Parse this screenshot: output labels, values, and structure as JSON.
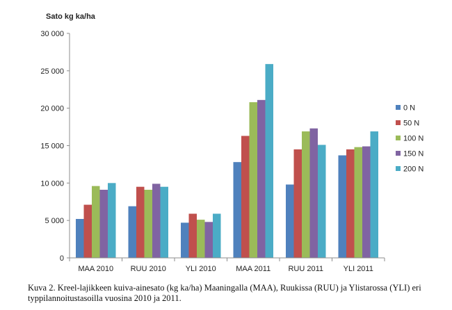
{
  "chart_data": {
    "type": "bar",
    "ylabel": "Sato kg ka/ha",
    "xlabel": "",
    "ylim": [
      0,
      30000
    ],
    "yticks": [
      0,
      5000,
      10000,
      15000,
      20000,
      25000,
      30000
    ],
    "ytick_labels": [
      "0",
      "5 000",
      "10 000",
      "15 000",
      "20 000",
      "25 000",
      "30 000"
    ],
    "grid": false,
    "legend_position": "right",
    "categories": [
      "MAA 2010",
      "RUU 2010",
      "YLI 2010",
      "MAA 2011",
      "RUU 2011",
      "YLI 2011"
    ],
    "series": [
      {
        "name": "0 N",
        "color": "#4f81bd",
        "values": [
          5200,
          6900,
          4700,
          12800,
          9800,
          13700
        ]
      },
      {
        "name": "50 N",
        "color": "#c0504d",
        "values": [
          7100,
          9500,
          5900,
          16300,
          14500,
          14500
        ]
      },
      {
        "name": "100 N",
        "color": "#9bbb59",
        "values": [
          9600,
          9100,
          5100,
          20800,
          16900,
          14800
        ]
      },
      {
        "name": "150 N",
        "color": "#8064a2",
        "values": [
          9100,
          9900,
          4800,
          21100,
          17300,
          14900
        ]
      },
      {
        "name": "200 N",
        "color": "#4bacc6",
        "values": [
          10000,
          9500,
          5900,
          25900,
          15100,
          16900
        ]
      }
    ]
  },
  "caption": "Kuva 2. Kreel-lajikkeen kuiva-ainesato (kg ka/ha) Maaningalla (MAA), Ruukissa (RUU) ja Ylistarossa (YLI) eri typpilannoitustasoilla vuosina 2010 ja 2011."
}
